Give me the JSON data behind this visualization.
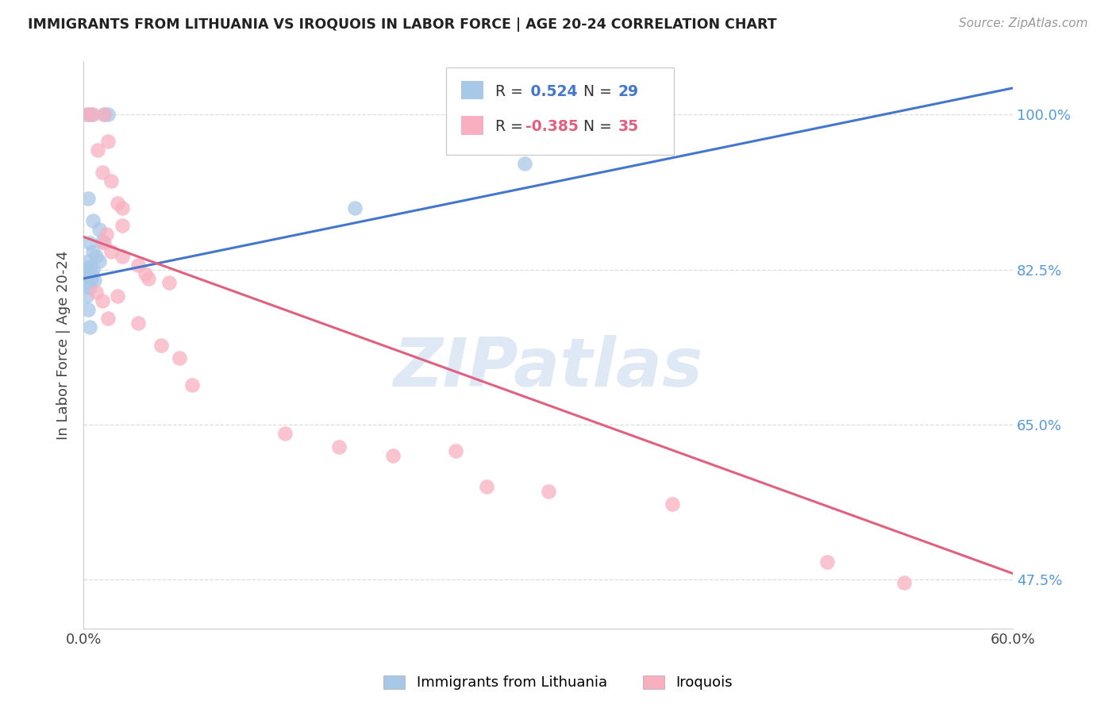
{
  "title": "IMMIGRANTS FROM LITHUANIA VS IROQUOIS IN LABOR FORCE | AGE 20-24 CORRELATION CHART",
  "source": "Source: ZipAtlas.com",
  "ylabel": "In Labor Force | Age 20-24",
  "xlim": [
    0.0,
    0.6
  ],
  "ylim": [
    0.42,
    1.06
  ],
  "xtick_positions": [
    0.0,
    0.1,
    0.2,
    0.3,
    0.4,
    0.5,
    0.6
  ],
  "xticklabels": [
    "0.0%",
    "",
    "",
    "",
    "",
    "",
    "60.0%"
  ],
  "ytick_positions": [
    0.475,
    0.65,
    0.825,
    1.0
  ],
  "ytick_labels": [
    "47.5%",
    "65.0%",
    "82.5%",
    "100.0%"
  ],
  "r_blue": 0.524,
  "n_blue": 29,
  "r_pink": -0.385,
  "n_pink": 35,
  "blue_color": "#a8c8e8",
  "pink_color": "#f8b0c0",
  "blue_line_color": "#4477cc",
  "pink_line_color": "#e06080",
  "legend_label_blue": "Immigrants from Lithuania",
  "legend_label_pink": "Iroquois",
  "blue_line_x": [
    0.0,
    0.6
  ],
  "blue_line_y": [
    0.815,
    1.03
  ],
  "pink_line_x": [
    0.0,
    0.6
  ],
  "pink_line_y": [
    0.862,
    0.482
  ],
  "blue_points_x": [
    0.003,
    0.005,
    0.013,
    0.016,
    0.003,
    0.006,
    0.01,
    0.012,
    0.004,
    0.006,
    0.008,
    0.01,
    0.003,
    0.004,
    0.006,
    0.002,
    0.003,
    0.005,
    0.002,
    0.003,
    0.005,
    0.007,
    0.003,
    0.004,
    0.002,
    0.003,
    0.004,
    0.175,
    0.285
  ],
  "blue_points_y": [
    1.0,
    1.0,
    1.0,
    1.0,
    0.905,
    0.88,
    0.87,
    0.857,
    0.855,
    0.845,
    0.84,
    0.835,
    0.835,
    0.828,
    0.826,
    0.825,
    0.823,
    0.82,
    0.82,
    0.818,
    0.815,
    0.813,
    0.81,
    0.805,
    0.795,
    0.78,
    0.76,
    0.895,
    0.945
  ],
  "pink_points_x": [
    0.002,
    0.006,
    0.013,
    0.016,
    0.009,
    0.012,
    0.018,
    0.022,
    0.025,
    0.025,
    0.015,
    0.013,
    0.018,
    0.025,
    0.035,
    0.04,
    0.042,
    0.055,
    0.008,
    0.022,
    0.012,
    0.016,
    0.035,
    0.05,
    0.062,
    0.07,
    0.13,
    0.165,
    0.2,
    0.24,
    0.26,
    0.3,
    0.38,
    0.48,
    0.53
  ],
  "pink_points_y": [
    1.0,
    1.0,
    1.0,
    0.97,
    0.96,
    0.935,
    0.925,
    0.9,
    0.895,
    0.875,
    0.865,
    0.855,
    0.845,
    0.84,
    0.83,
    0.82,
    0.815,
    0.81,
    0.8,
    0.795,
    0.79,
    0.77,
    0.765,
    0.74,
    0.725,
    0.695,
    0.64,
    0.625,
    0.615,
    0.62,
    0.58,
    0.575,
    0.56,
    0.495,
    0.472
  ],
  "watermark_text": "ZIPatlas",
  "background_color": "#ffffff",
  "grid_color": "#dddddd"
}
